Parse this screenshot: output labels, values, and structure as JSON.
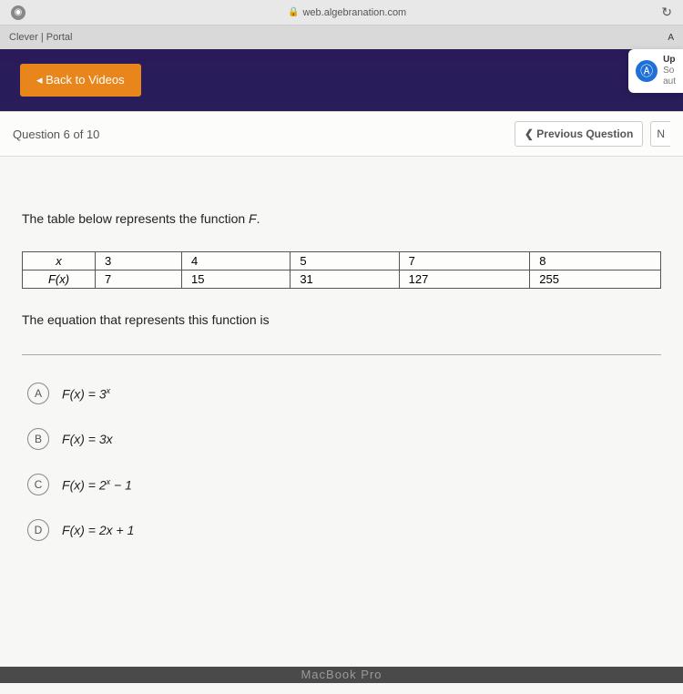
{
  "browser": {
    "url": "web.algebranation.com",
    "tab_title": "Clever | Portal",
    "right_label": "A"
  },
  "notification": {
    "title": "Up",
    "line1": "So",
    "line2": "aut"
  },
  "back_button": "Back to Videos",
  "question": {
    "counter": "Question 6 of 10",
    "prev_label": "Previous Question",
    "next_fragment": "N",
    "prompt_prefix": "The table below represents the function ",
    "prompt_var": "F",
    "prompt_suffix": ".",
    "prompt2": "The equation that represents this function is"
  },
  "function_table": {
    "row1_label": "x",
    "row2_label": "F(x)",
    "columns": [
      "3",
      "4",
      "5",
      "7",
      "8"
    ],
    "values": [
      "7",
      "15",
      "31",
      "127",
      "255"
    ]
  },
  "answers": [
    {
      "letter": "A",
      "html": "F(x) = 3<sup>x</sup>"
    },
    {
      "letter": "B",
      "html": "F(x) = 3x"
    },
    {
      "letter": "C",
      "html": "F(x) = 2<sup>x</sup> − 1"
    },
    {
      "letter": "D",
      "html": "F(x) = 2x + 1"
    }
  ],
  "device_label": "MacBook Pro",
  "colors": {
    "accent_orange": "#e8861c",
    "panel_bg": "#f7f7f5",
    "border_gray": "#555"
  }
}
